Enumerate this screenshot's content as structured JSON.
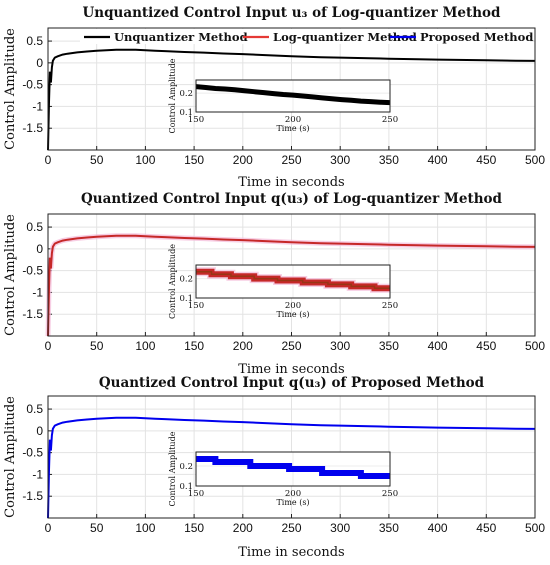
{
  "chart_data": [
    {
      "type": "line",
      "title": "Unquantized Control Input u₃ of Log-quantizer Method",
      "xlabel": "Time in seconds",
      "ylabel": "Control Amplitude",
      "xlim": [
        0,
        500
      ],
      "ylim": [
        -2,
        0.8
      ],
      "xticks": [
        "0",
        "50",
        "100",
        "150",
        "200",
        "250",
        "300",
        "350",
        "400",
        "450",
        "500"
      ],
      "yticks": [
        "-1.5",
        "-1",
        "-0.5",
        "0",
        "0.5"
      ],
      "grid": true,
      "legend": {
        "placement": "top",
        "entries": [
          "Unquantizer Method",
          "Log-quantizer Method",
          "Proposed Method"
        ]
      },
      "series": [
        {
          "name": "Unquantizer Method",
          "color": "#000000",
          "x": [
            0,
            1,
            2,
            3,
            4,
            5,
            7,
            10,
            15,
            20,
            30,
            40,
            50,
            60,
            70,
            80,
            90,
            100,
            110,
            120,
            140,
            160,
            180,
            200,
            220,
            250,
            280,
            300,
            330,
            350,
            380,
            400,
            430,
            450,
            480,
            500
          ],
          "y": [
            -2.0,
            -0.9,
            -0.2,
            -0.45,
            -0.1,
            0.05,
            0.12,
            0.15,
            0.19,
            0.21,
            0.24,
            0.26,
            0.28,
            0.29,
            0.3,
            0.3,
            0.3,
            0.29,
            0.28,
            0.27,
            0.25,
            0.235,
            0.215,
            0.2,
            0.18,
            0.15,
            0.13,
            0.12,
            0.105,
            0.095,
            0.085,
            0.075,
            0.065,
            0.058,
            0.05,
            0.045
          ]
        }
      ],
      "inset": {
        "xlabel": "Time (s)",
        "ylabel": "Control Amplitude",
        "xlim": [
          150,
          250
        ],
        "ylim": [
          0.1,
          0.27
        ],
        "xticks": [
          "150",
          "200",
          "250"
        ],
        "yticks": [
          "0.1",
          "0.2"
        ],
        "x": [
          150,
          155,
          160,
          165,
          170,
          175,
          180,
          185,
          190,
          195,
          200,
          205,
          210,
          215,
          220,
          225,
          230,
          235,
          240,
          245,
          250
        ],
        "y": [
          0.235,
          0.23,
          0.225,
          0.222,
          0.218,
          0.213,
          0.208,
          0.203,
          0.198,
          0.193,
          0.19,
          0.185,
          0.18,
          0.175,
          0.17,
          0.166,
          0.162,
          0.158,
          0.155,
          0.152,
          0.15
        ]
      }
    },
    {
      "type": "line",
      "title": "Quantized Control Input q(u₃) of Log-quantizer Method",
      "xlabel": "Time in seconds",
      "ylabel": "Control Amplitude",
      "xlim": [
        0,
        500
      ],
      "ylim": [
        -2,
        0.8
      ],
      "xticks": [
        "0",
        "50",
        "100",
        "150",
        "200",
        "250",
        "300",
        "350",
        "400",
        "450",
        "500"
      ],
      "yticks": [
        "-1.5",
        "-1",
        "-0.5",
        "0",
        "0.5"
      ],
      "grid": true,
      "series": [
        {
          "color": "#c62828",
          "x": [
            0,
            1,
            2,
            3,
            4,
            5,
            7,
            10,
            15,
            20,
            30,
            40,
            50,
            60,
            70,
            80,
            90,
            100,
            110,
            120,
            140,
            160,
            180,
            200,
            220,
            250,
            280,
            300,
            330,
            350,
            380,
            400,
            430,
            450,
            480,
            500
          ],
          "y": [
            -2.0,
            -0.9,
            -0.2,
            -0.45,
            -0.1,
            0.05,
            0.12,
            0.15,
            0.19,
            0.21,
            0.24,
            0.26,
            0.28,
            0.29,
            0.3,
            0.3,
            0.3,
            0.29,
            0.28,
            0.27,
            0.25,
            0.235,
            0.215,
            0.2,
            0.18,
            0.15,
            0.13,
            0.12,
            0.105,
            0.095,
            0.085,
            0.075,
            0.065,
            0.058,
            0.05,
            0.045
          ]
        }
      ],
      "inset": {
        "xlabel": "Time (s)",
        "ylabel": "Control Amplitude",
        "xlim": [
          150,
          250
        ],
        "ylim": [
          0.1,
          0.27
        ],
        "xticks": [
          "150",
          "200",
          "250"
        ],
        "yticks": [
          "0.1",
          "0.2"
        ],
        "x": [
          150,
          158,
          158,
          168,
          168,
          180,
          180,
          192,
          192,
          205,
          205,
          218,
          218,
          230,
          230,
          242,
          242,
          250
        ],
        "y": [
          0.235,
          0.235,
          0.222,
          0.222,
          0.212,
          0.212,
          0.2,
          0.2,
          0.19,
          0.19,
          0.18,
          0.18,
          0.17,
          0.17,
          0.16,
          0.16,
          0.15,
          0.15
        ]
      }
    },
    {
      "type": "line",
      "title": "Quantized Control Input q(u₃) of Proposed Method",
      "xlabel": "Time in seconds",
      "ylabel": "Control Amplitude",
      "xlim": [
        0,
        500
      ],
      "ylim": [
        -2,
        0.8
      ],
      "xticks": [
        "0",
        "50",
        "100",
        "150",
        "200",
        "250",
        "300",
        "350",
        "400",
        "450",
        "500"
      ],
      "yticks": [
        "-1.5",
        "-1",
        "-0.5",
        "0",
        "0.5"
      ],
      "grid": true,
      "series": [
        {
          "color": "#0000ee",
          "x": [
            0,
            1,
            2,
            3,
            4,
            5,
            7,
            10,
            15,
            20,
            30,
            40,
            50,
            60,
            70,
            80,
            90,
            100,
            110,
            120,
            140,
            160,
            180,
            200,
            220,
            250,
            280,
            300,
            330,
            350,
            380,
            400,
            430,
            450,
            480,
            500
          ],
          "y": [
            -2.0,
            -0.9,
            -0.2,
            -0.45,
            -0.1,
            0.05,
            0.12,
            0.15,
            0.19,
            0.21,
            0.24,
            0.26,
            0.28,
            0.29,
            0.3,
            0.3,
            0.3,
            0.29,
            0.28,
            0.27,
            0.25,
            0.235,
            0.215,
            0.2,
            0.18,
            0.15,
            0.13,
            0.12,
            0.105,
            0.095,
            0.085,
            0.075,
            0.065,
            0.058,
            0.05,
            0.045
          ]
        }
      ],
      "inset": {
        "xlabel": "Time (s)",
        "ylabel": "Control Amplitude",
        "xlim": [
          150,
          250
        ],
        "ylim": [
          0.1,
          0.27
        ],
        "xticks": [
          "150",
          "200",
          "250"
        ],
        "yticks": [
          "0.1",
          "0.2"
        ],
        "x": [
          150,
          160,
          160,
          178,
          178,
          198,
          198,
          215,
          215,
          235,
          235,
          250
        ],
        "y": [
          0.235,
          0.235,
          0.22,
          0.22,
          0.2,
          0.2,
          0.185,
          0.185,
          0.165,
          0.165,
          0.15,
          0.15
        ]
      }
    }
  ]
}
